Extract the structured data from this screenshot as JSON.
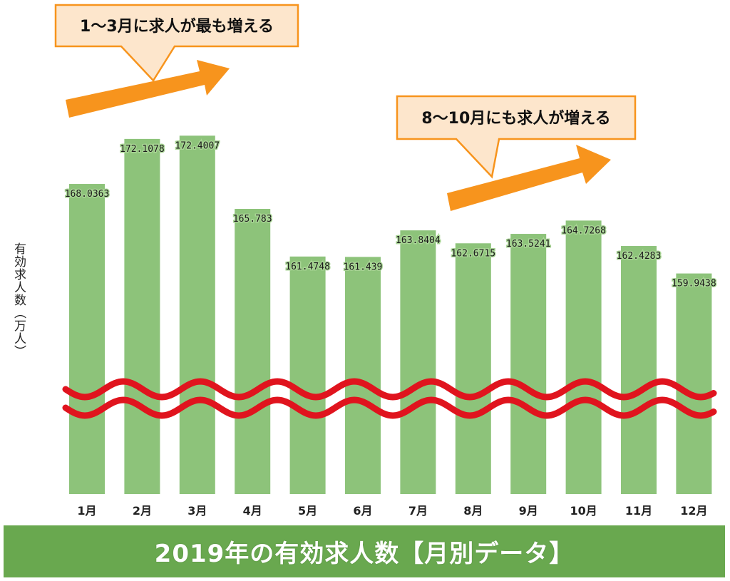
{
  "chart_data": {
    "type": "bar",
    "title": "2019年の有効求人数【月別データ】",
    "ylabel": "有効求人数（万人）",
    "xlabel": "",
    "categories": [
      "1月",
      "2月",
      "3月",
      "4月",
      "5月",
      "6月",
      "7月",
      "8月",
      "9月",
      "10月",
      "11月",
      "12月"
    ],
    "values": [
      168.0363,
      172.1078,
      172.4007,
      165.783,
      161.4748,
      161.439,
      163.8404,
      162.6715,
      163.5241,
      164.7268,
      162.4283,
      159.9438
    ],
    "value_labels": [
      "168.0363",
      "172.1078",
      "172.4007",
      "165.783",
      "161.4748",
      "161.439",
      "163.8404",
      "162.6715",
      "163.5241",
      "164.7268",
      "162.4283",
      "159.9438"
    ],
    "axis_break": true,
    "ylim": [
      140,
      175
    ],
    "grid": false,
    "legend": "none",
    "annotations": [
      {
        "text": "1〜3月に求人が最も増える",
        "months": [
          "1月",
          "2月",
          "3月"
        ]
      },
      {
        "text": "8〜10月にも求人が増える",
        "months": [
          "8月",
          "9月",
          "10月"
        ]
      }
    ]
  },
  "colors": {
    "bar": "#8dc37a",
    "value_text": "#1a1a1a",
    "value_halo": "#a9d595",
    "arrow": "#f7941d",
    "callout_fill": "#fde6cc",
    "callout_stroke": "#f7941d",
    "break_line": "#e0141e",
    "footer": "#69a84f"
  }
}
